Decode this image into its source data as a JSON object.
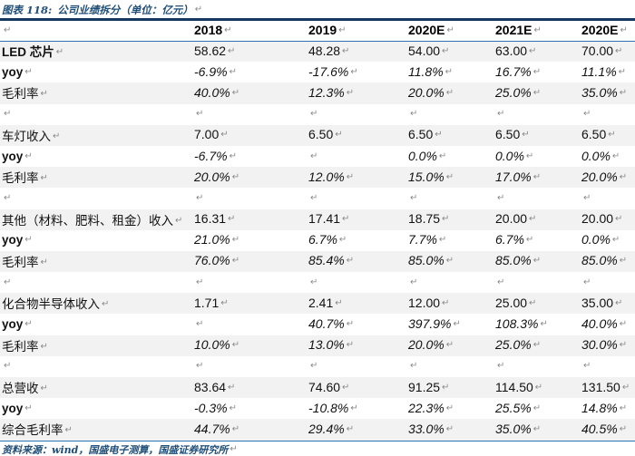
{
  "title": {
    "label": "图表 118:",
    "text": "公司业绩拆分（单位：亿元）"
  },
  "paragraph_mark": "↵",
  "colors": {
    "title_blue": "#1F4E79",
    "rule_blue": "#2E74B5",
    "top_rule_navy": "#17375E",
    "row_shade": "#F2F2F2"
  },
  "table": {
    "columns": [
      {
        "label": ""
      },
      {
        "label": "2018"
      },
      {
        "label": "2019"
      },
      {
        "label": "2020E"
      },
      {
        "label": "2021E"
      },
      {
        "label": "2020E"
      }
    ],
    "rows": [
      {
        "label": "LED 芯片",
        "type": "revenue",
        "bold": true,
        "values": [
          "58.62",
          "48.28",
          "54.00",
          "63.00",
          "70.00"
        ]
      },
      {
        "label": "yoy",
        "type": "yoy",
        "bold": true,
        "values": [
          "-6.9%",
          "-17.6%",
          "11.8%",
          "16.7%",
          "11.1%"
        ]
      },
      {
        "label": "毛利率",
        "type": "margin",
        "bold": false,
        "values": [
          "40.0%",
          "12.3%",
          "20.0%",
          "25.0%",
          "35.0%"
        ]
      },
      {
        "label": "",
        "type": "spacer",
        "bold": false,
        "values": [
          "",
          "",
          "",
          "",
          ""
        ]
      },
      {
        "label": "车灯收入",
        "type": "revenue",
        "bold": false,
        "values": [
          "7.00",
          "6.50",
          "6.50",
          "6.50",
          "6.50"
        ]
      },
      {
        "label": "yoy",
        "type": "yoy",
        "bold": true,
        "values": [
          "-6.7%",
          "",
          "0.0%",
          "0.0%",
          "0.0%"
        ]
      },
      {
        "label": "毛利率",
        "type": "margin",
        "bold": false,
        "values": [
          "20.0%",
          "12.0%",
          "15.0%",
          "17.0%",
          "20.0%"
        ]
      },
      {
        "label": "",
        "type": "spacer",
        "bold": false,
        "values": [
          "",
          "",
          "",
          "",
          ""
        ]
      },
      {
        "label": "其他（材料、肥料、租金）收入",
        "type": "revenue",
        "bold": false,
        "values": [
          "16.31",
          "17.41",
          "18.75",
          "20.00",
          "20.00"
        ]
      },
      {
        "label": "yoy",
        "type": "yoy",
        "bold": true,
        "values": [
          "21.0%",
          "6.7%",
          "7.7%",
          "6.7%",
          "0.0%"
        ]
      },
      {
        "label": "毛利率",
        "type": "margin",
        "bold": false,
        "values": [
          "76.0%",
          "85.4%",
          "85.0%",
          "85.0%",
          "85.0%"
        ]
      },
      {
        "label": "",
        "type": "spacer",
        "bold": false,
        "values": [
          "",
          "",
          "",
          "",
          ""
        ]
      },
      {
        "label": "化合物半导体收入",
        "type": "revenue",
        "bold": false,
        "values": [
          "1.71",
          "2.41",
          "12.00",
          "25.00",
          "35.00"
        ]
      },
      {
        "label": "yoy",
        "type": "yoy",
        "bold": true,
        "values": [
          "",
          "40.7%",
          "397.9%",
          "108.3%",
          "40.0%"
        ]
      },
      {
        "label": "毛利率",
        "type": "margin",
        "bold": false,
        "values": [
          "10.0%",
          "13.0%",
          "20.0%",
          "25.0%",
          "30.0%"
        ]
      },
      {
        "label": "",
        "type": "spacer",
        "bold": false,
        "values": [
          "",
          "",
          "",
          "",
          ""
        ]
      },
      {
        "label": "总营收",
        "type": "revenue",
        "bold": false,
        "values": [
          "83.64",
          "74.60",
          "91.25",
          "114.50",
          "131.50"
        ]
      },
      {
        "label": "yoy",
        "type": "yoy",
        "bold": true,
        "values": [
          "-0.3%",
          "-10.8%",
          "22.3%",
          "25.5%",
          "14.8%"
        ]
      },
      {
        "label": "综合毛利率",
        "type": "margin",
        "bold": false,
        "values": [
          "44.7%",
          "29.4%",
          "33.0%",
          "35.0%",
          "40.5%"
        ]
      }
    ]
  },
  "footer": {
    "text": "资料来源：wind，国盛电子测算，国盛证券研究所"
  }
}
